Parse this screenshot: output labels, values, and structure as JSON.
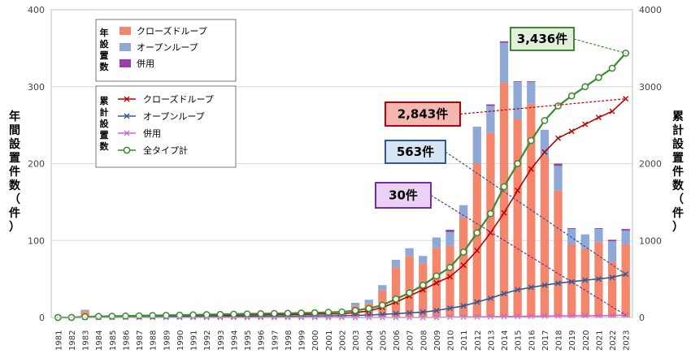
{
  "chart_data": {
    "type": "bar",
    "title": "",
    "y_left_label": "年間設置件数（件）",
    "y_right_label": "累計設置件数（件）",
    "y_left_ticks": [
      "0",
      "100",
      "200",
      "300",
      "400"
    ],
    "y_right_ticks": [
      "0",
      "1000",
      "2000",
      "3000",
      "4000"
    ],
    "ylim_left": [
      0,
      400
    ],
    "ylim_right": [
      0,
      4000
    ],
    "categories": [
      "1981",
      "1982",
      "1983",
      "1984",
      "1985",
      "1986",
      "1987",
      "1988",
      "1989",
      "1990",
      "1991",
      "1992",
      "1993",
      "1994",
      "1995",
      "1996",
      "1997",
      "1998",
      "1999",
      "2000",
      "2001",
      "2002",
      "2003",
      "2004",
      "2005",
      "2006",
      "2007",
      "2008",
      "2009",
      "2010",
      "2011",
      "2012",
      "2013",
      "2014",
      "2015",
      "2016",
      "2017",
      "2018",
      "2019",
      "2020",
      "2021",
      "2022",
      "2023"
    ],
    "annual_series": [
      {
        "name": "クローズドループ",
        "color": "#f4876b",
        "values": [
          0,
          0,
          8,
          2,
          2,
          2,
          2,
          2,
          2,
          2,
          2,
          2,
          2,
          2,
          2,
          2,
          2,
          2,
          2,
          2,
          4,
          3,
          15,
          18,
          35,
          65,
          80,
          70,
          90,
          93,
          130,
          200,
          240,
          305,
          258,
          278,
          210,
          165,
          95,
          90,
          98,
          72,
          95
        ]
      },
      {
        "name": "オープンループ",
        "color": "#8ea9d8",
        "values": [
          0,
          0,
          2,
          1,
          1,
          1,
          1,
          1,
          1,
          1,
          1,
          1,
          1,
          1,
          1,
          1,
          1,
          1,
          1,
          1,
          2,
          2,
          4,
          5,
          7,
          10,
          10,
          10,
          14,
          18,
          16,
          48,
          35,
          52,
          48,
          28,
          34,
          32,
          20,
          18,
          17,
          27,
          18
        ]
      },
      {
        "name": "併用",
        "color": "#9a3fa8",
        "values": [
          0,
          0,
          0,
          0,
          0,
          0,
          0,
          0,
          0,
          0,
          0,
          0,
          0,
          0,
          0,
          0,
          0,
          0,
          0,
          0,
          0,
          0,
          0,
          0,
          0,
          0,
          0,
          0,
          0,
          3,
          0,
          0,
          2,
          2,
          1,
          1,
          0,
          3,
          1,
          0,
          1,
          2,
          2
        ]
      }
    ],
    "cumulative_series": [
      {
        "name": "クローズドループ",
        "color": "#c00000",
        "marker": "x",
        "values": [
          0,
          0,
          8,
          10,
          12,
          14,
          16,
          18,
          20,
          22,
          24,
          26,
          28,
          30,
          32,
          34,
          36,
          38,
          40,
          42,
          46,
          49,
          64,
          85,
          130,
          200,
          280,
          360,
          450,
          530,
          680,
          870,
          1100,
          1360,
          1650,
          1930,
          2150,
          2330,
          2420,
          2510,
          2600,
          2680,
          2843
        ]
      },
      {
        "name": "オープンループ",
        "color": "#2e5a9b",
        "marker": "x",
        "values": [
          0,
          0,
          2,
          3,
          4,
          5,
          6,
          7,
          8,
          9,
          10,
          11,
          12,
          13,
          14,
          15,
          16,
          17,
          18,
          19,
          21,
          23,
          27,
          32,
          40,
          50,
          60,
          70,
          90,
          120,
          150,
          200,
          250,
          310,
          360,
          390,
          420,
          445,
          465,
          485,
          500,
          520,
          563
        ]
      },
      {
        "name": "併用",
        "color": "#cc66cc",
        "marker": "x",
        "values": [
          0,
          0,
          0,
          0,
          0,
          0,
          0,
          0,
          0,
          0,
          0,
          0,
          0,
          0,
          0,
          0,
          0,
          0,
          0,
          0,
          0,
          0,
          0,
          0,
          0,
          0,
          0,
          0,
          0,
          5,
          6,
          8,
          10,
          12,
          14,
          15,
          17,
          20,
          21,
          22,
          23,
          25,
          30
        ]
      },
      {
        "name": "全タイプ計",
        "color": "#3a8a2e",
        "marker": "circle",
        "values": [
          0,
          0,
          10,
          13,
          16,
          19,
          22,
          25,
          28,
          31,
          34,
          37,
          40,
          43,
          46,
          49,
          52,
          55,
          58,
          61,
          67,
          72,
          91,
          117,
          160,
          240,
          320,
          420,
          540,
          650,
          850,
          1100,
          1350,
          1700,
          2000,
          2300,
          2560,
          2750,
          2880,
          3000,
          3120,
          3240,
          3436
        ]
      }
    ],
    "legend": {
      "annual_title": "年設置数",
      "annual_items": [
        "クローズドループ",
        "オープンループ",
        "併用"
      ],
      "cumulative_title": "累計設置数",
      "cumulative_items": [
        "クローズドループ",
        "オープンループ",
        "併用",
        "全タイプ計"
      ]
    },
    "annotations": [
      {
        "label": "3,436件",
        "series": "全タイプ計",
        "value": 3436,
        "border": "#3a8a2e",
        "fill": "#e2f0d9",
        "text_color": "#000000"
      },
      {
        "label": "2,843件",
        "series": "クローズドループ",
        "value": 2843,
        "border": "#c00000",
        "fill": "#f4b8b0",
        "text_color": "#000000"
      },
      {
        "label": "563件",
        "series": "オープンループ",
        "value": 563,
        "border": "#2e5a9b",
        "fill": "#d6e4f3",
        "text_color": "#000000"
      },
      {
        "label": "30件",
        "series": "併用",
        "value": 30,
        "border": "#7030a0",
        "fill": "#ead1f5",
        "text_color": "#000000"
      }
    ]
  }
}
